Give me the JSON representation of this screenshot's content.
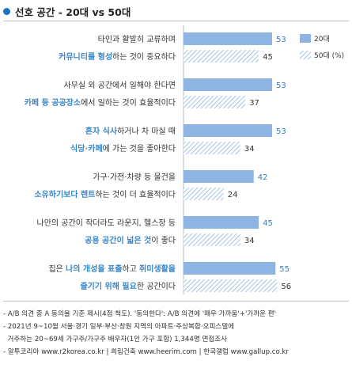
{
  "title": "선호 공간 - 20대 vs 50대",
  "colors": {
    "bar_20s": "#8db4e2",
    "bar_50s_stripe": "#8db4e2",
    "highlight_text": "#3a87c8",
    "title_dot": "#1e73be"
  },
  "legend": {
    "s20": "20대",
    "s50": "50대 (%)"
  },
  "chart_data": {
    "type": "bar",
    "orientation": "horizontal",
    "xlim": [
      0,
      60
    ],
    "categories": [
      {
        "line1": [
          {
            "t": "타인과 활발히 교류하며",
            "hi": false
          }
        ],
        "line2": [
          {
            "t": "커뮤니티를 형성",
            "hi": true
          },
          {
            "t": "하는 것이 중요하다",
            "hi": false
          }
        ]
      },
      {
        "line1": [
          {
            "t": "사무실 외 공간에서 일해야 한다면",
            "hi": false
          }
        ],
        "line2": [
          {
            "t": "카페 등 공공장소",
            "hi": true
          },
          {
            "t": "에서 일하는 것이 효율적이다",
            "hi": false
          }
        ]
      },
      {
        "line1": [
          {
            "t": "혼자 식사",
            "hi": true
          },
          {
            "t": "하거나 차 마실 때",
            "hi": false
          }
        ],
        "line2": [
          {
            "t": "식당·카페",
            "hi": true
          },
          {
            "t": "에 가는 것을 좋아한다",
            "hi": false
          }
        ]
      },
      {
        "line1": [
          {
            "t": "가구·가전·차량 등 물건을",
            "hi": false
          }
        ],
        "line2": [
          {
            "t": "소유하기보다 렌트",
            "hi": true
          },
          {
            "t": "하는 것이 더 효율적이다",
            "hi": false
          }
        ]
      },
      {
        "line1": [
          {
            "t": "나만의 공간이 작더라도 라운지, 헬스장 등",
            "hi": false
          }
        ],
        "line2": [
          {
            "t": "공용 공간이 넓은 것",
            "hi": true
          },
          {
            "t": "이 좋다",
            "hi": false
          }
        ]
      },
      {
        "line1": [
          {
            "t": "집은 ",
            "hi": false
          },
          {
            "t": "나의 개성을 표출",
            "hi": true
          },
          {
            "t": "하고 ",
            "hi": false
          },
          {
            "t": "취미생활을",
            "hi": true
          }
        ],
        "line2": [
          {
            "t": "즐기기 위해 필요",
            "hi": true
          },
          {
            "t": "한 공간이다",
            "hi": false
          }
        ]
      }
    ],
    "series": [
      {
        "name": "20대",
        "values": [
          53,
          53,
          53,
          42,
          45,
          55
        ]
      },
      {
        "name": "50대",
        "values": [
          45,
          37,
          34,
          24,
          34,
          56
        ]
      }
    ]
  },
  "notes": [
    "- A/B 의견 중 A 동의율 기준 제시(4점 척도). '동의한다': A/B 의견에 '매우 가까움'+'가까운 편'",
    "- 2021년 9~10월 서울·경기 일부·부산·창원 지역의 아파트·주상복합·오피스텔에",
    "  거주하는 20~69세 가구주/가구주 배우자(1인 가구 포함) 1,344명 면접조사",
    "- 알투코리아 www.r2korea.co.kr | 희림건축 www.heerim.com | 한국갤럽 www.gallup.co.kr"
  ]
}
